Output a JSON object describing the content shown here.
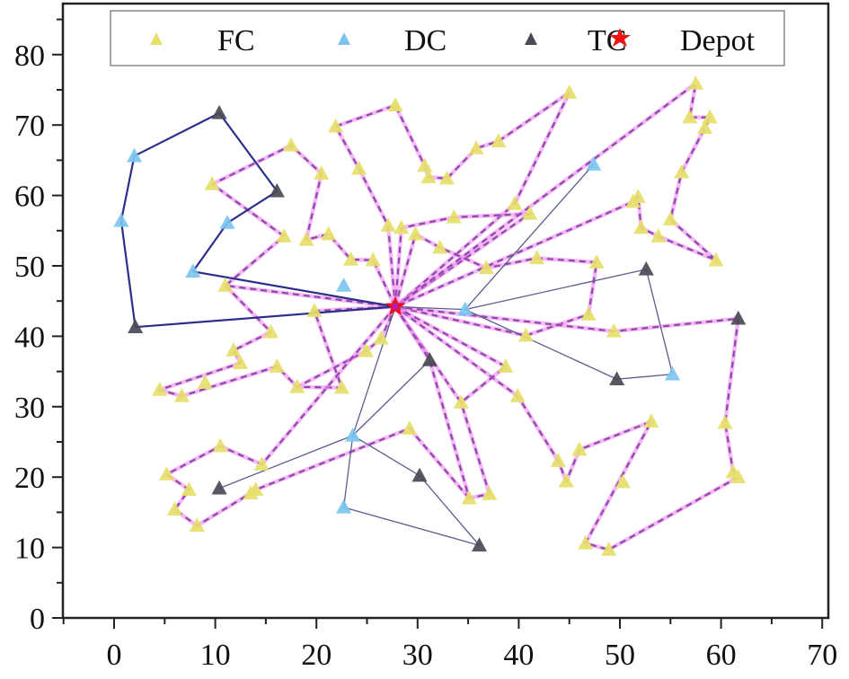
{
  "chart_data": {
    "type": "scatter",
    "title": "",
    "xlabel": "",
    "ylabel": "",
    "xlim": [
      -5,
      70
    ],
    "ylim": [
      0,
      87
    ],
    "x_ticks": [
      0,
      10,
      20,
      30,
      40,
      50,
      60,
      70
    ],
    "y_ticks": [
      0,
      10,
      20,
      30,
      40,
      50,
      60,
      70,
      80
    ],
    "grid": false,
    "legend_position": "top",
    "legend": [
      {
        "label": "FC",
        "marker": "triangle",
        "color": "#e6e06a"
      },
      {
        "label": "DC",
        "marker": "triangle",
        "color": "#7cc4f0"
      },
      {
        "label": "TC",
        "marker": "triangle",
        "color": "#4a4a55"
      },
      {
        "label": "Depot",
        "marker": "star",
        "color": "#ee1111"
      }
    ],
    "depot": {
      "x": 27.8,
      "y": 44.2
    },
    "series": [
      {
        "name": "FC",
        "color": "#e6e06a",
        "points": [
          [
            9.7,
            61.6
          ],
          [
            17.5,
            67.1
          ],
          [
            20.5,
            63.1
          ],
          [
            16.8,
            54.2
          ],
          [
            19.0,
            53.7
          ],
          [
            21.2,
            54.5
          ],
          [
            23.4,
            50.9
          ],
          [
            25.6,
            50.8
          ],
          [
            11.0,
            47.2
          ],
          [
            21.9,
            69.8
          ],
          [
            27.8,
            72.8
          ],
          [
            24.2,
            63.8
          ],
          [
            30.7,
            64.2
          ],
          [
            31.1,
            62.6
          ],
          [
            32.9,
            62.4
          ],
          [
            35.8,
            66.7
          ],
          [
            38.0,
            67.7
          ],
          [
            45.0,
            74.6
          ],
          [
            27.1,
            55.7
          ],
          [
            28.4,
            55.4
          ],
          [
            29.8,
            54.5
          ],
          [
            32.2,
            52.6
          ],
          [
            33.6,
            56.9
          ],
          [
            36.8,
            49.7
          ],
          [
            39.6,
            58.8
          ],
          [
            41.1,
            57.4
          ],
          [
            41.8,
            51.1
          ],
          [
            47.7,
            50.5
          ],
          [
            46.9,
            43.1
          ],
          [
            40.7,
            40.1
          ],
          [
            49.4,
            40.7
          ],
          [
            57.5,
            75.9
          ],
          [
            56.9,
            71.1
          ],
          [
            58.9,
            71.1
          ],
          [
            58.4,
            69.6
          ],
          [
            56.1,
            63.3
          ],
          [
            51.8,
            59.8
          ],
          [
            51.3,
            59.1
          ],
          [
            52.1,
            55.4
          ],
          [
            53.8,
            54.2
          ],
          [
            55.0,
            56.6
          ],
          [
            59.5,
            50.8
          ],
          [
            15.5,
            40.6
          ],
          [
            11.8,
            38.0
          ],
          [
            12.5,
            36.2
          ],
          [
            16.1,
            35.7
          ],
          [
            9.0,
            33.4
          ],
          [
            4.5,
            32.4
          ],
          [
            6.7,
            31.5
          ],
          [
            19.8,
            43.6
          ],
          [
            18.1,
            32.8
          ],
          [
            22.5,
            32.7
          ],
          [
            24.9,
            37.9
          ],
          [
            26.4,
            39.7
          ],
          [
            38.7,
            35.7
          ],
          [
            34.3,
            30.6
          ],
          [
            39.9,
            31.5
          ],
          [
            29.2,
            26.9
          ],
          [
            35.1,
            17.0
          ],
          [
            37.1,
            17.6
          ],
          [
            10.5,
            24.4
          ],
          [
            5.2,
            20.4
          ],
          [
            14.6,
            21.8
          ],
          [
            7.4,
            18.2
          ],
          [
            6.0,
            15.4
          ],
          [
            8.2,
            13.1
          ],
          [
            13.5,
            17.7
          ],
          [
            14.0,
            18.2
          ],
          [
            43.9,
            22.3
          ],
          [
            44.7,
            19.4
          ],
          [
            46.0,
            23.9
          ],
          [
            53.1,
            27.9
          ],
          [
            50.3,
            19.3
          ],
          [
            46.6,
            10.6
          ],
          [
            48.9,
            9.7
          ],
          [
            60.4,
            27.7
          ],
          [
            61.2,
            20.7
          ],
          [
            61.7,
            20.0
          ]
        ]
      },
      {
        "name": "DC",
        "color": "#7cc4f0",
        "points": [
          [
            2.0,
            65.6
          ],
          [
            0.7,
            56.4
          ],
          [
            11.2,
            56.1
          ],
          [
            7.8,
            49.2
          ],
          [
            22.7,
            47.2
          ],
          [
            34.7,
            43.8
          ],
          [
            47.4,
            64.4
          ],
          [
            55.2,
            34.6
          ],
          [
            23.6,
            25.9
          ],
          [
            22.7,
            15.7
          ]
        ]
      },
      {
        "name": "TC",
        "color": "#4a4a55",
        "points": [
          [
            10.4,
            71.7
          ],
          [
            16.1,
            60.6
          ],
          [
            2.1,
            41.3
          ],
          [
            52.6,
            49.5
          ],
          [
            61.7,
            42.5
          ],
          [
            49.7,
            33.9
          ],
          [
            31.2,
            36.6
          ],
          [
            10.4,
            18.4
          ],
          [
            30.2,
            20.2
          ],
          [
            36.1,
            10.3
          ]
        ]
      }
    ],
    "routes": {
      "truck_solid": [
        {
          "color": "#2b2f8a",
          "width": 2.2,
          "path": [
            [
              27.8,
              44.2
            ],
            [
              2.1,
              41.3
            ],
            [
              0.7,
              56.4
            ],
            [
              2.0,
              65.6
            ],
            [
              10.4,
              71.7
            ],
            [
              16.1,
              60.6
            ],
            [
              11.2,
              56.1
            ],
            [
              7.8,
              49.2
            ],
            [
              27.8,
              44.2
            ]
          ]
        }
      ],
      "truck_thin": [
        {
          "color": "#5a5f8a",
          "width": 1.3,
          "path": [
            [
              27.8,
              44.2
            ],
            [
              34.7,
              43.8
            ],
            [
              47.4,
              64.4
            ]
          ]
        },
        {
          "color": "#5a5f8a",
          "width": 1.3,
          "path": [
            [
              34.7,
              43.8
            ],
            [
              52.6,
              49.5
            ],
            [
              55.2,
              34.6
            ],
            [
              49.7,
              33.9
            ],
            [
              34.7,
              43.8
            ]
          ]
        },
        {
          "color": "#5a5f8a",
          "width": 1.3,
          "path": [
            [
              27.8,
              44.2
            ],
            [
              23.6,
              25.9
            ],
            [
              31.2,
              36.6
            ]
          ]
        },
        {
          "color": "#5a5f8a",
          "width": 1.3,
          "path": [
            [
              23.6,
              25.9
            ],
            [
              10.4,
              18.4
            ]
          ]
        },
        {
          "color": "#5a5f8a",
          "width": 1.3,
          "path": [
            [
              23.6,
              25.9
            ],
            [
              30.2,
              20.2
            ],
            [
              36.1,
              10.3
            ],
            [
              22.7,
              15.7
            ],
            [
              23.6,
              25.9
            ]
          ]
        }
      ],
      "drone_dashed": [
        {
          "path": [
            [
              27.8,
              44.2
            ],
            [
              11.0,
              47.2
            ],
            [
              16.8,
              54.2
            ],
            [
              9.7,
              61.6
            ],
            [
              17.5,
              67.1
            ],
            [
              20.5,
              63.1
            ],
            [
              19.0,
              53.7
            ],
            [
              21.2,
              54.5
            ],
            [
              23.4,
              50.9
            ],
            [
              25.6,
              50.8
            ],
            [
              27.8,
              44.2
            ]
          ]
        },
        {
          "path": [
            [
              27.8,
              44.2
            ],
            [
              27.1,
              55.7
            ],
            [
              24.2,
              63.8
            ],
            [
              21.9,
              69.8
            ],
            [
              27.8,
              72.8
            ],
            [
              30.7,
              64.2
            ],
            [
              31.1,
              62.6
            ],
            [
              32.9,
              62.4
            ],
            [
              35.8,
              66.7
            ],
            [
              38.0,
              67.7
            ],
            [
              45.0,
              74.6
            ],
            [
              39.6,
              58.8
            ],
            [
              27.8,
              44.2
            ]
          ]
        },
        {
          "path": [
            [
              27.8,
              44.2
            ],
            [
              28.4,
              55.4
            ],
            [
              33.6,
              56.9
            ],
            [
              41.1,
              57.4
            ],
            [
              27.8,
              44.2
            ]
          ]
        },
        {
          "path": [
            [
              27.8,
              44.2
            ],
            [
              29.8,
              54.5
            ],
            [
              32.2,
              52.6
            ],
            [
              36.8,
              49.7
            ],
            [
              41.8,
              51.1
            ],
            [
              47.7,
              50.5
            ],
            [
              46.9,
              43.1
            ],
            [
              40.7,
              40.1
            ],
            [
              27.8,
              44.2
            ]
          ]
        },
        {
          "path": [
            [
              27.8,
              44.2
            ],
            [
              57.5,
              75.9
            ],
            [
              56.9,
              71.1
            ],
            [
              58.9,
              71.1
            ],
            [
              58.4,
              69.6
            ],
            [
              56.1,
              63.3
            ],
            [
              55.0,
              56.6
            ],
            [
              59.5,
              50.8
            ],
            [
              53.8,
              54.2
            ],
            [
              52.1,
              55.4
            ],
            [
              51.8,
              59.8
            ],
            [
              51.3,
              59.1
            ],
            [
              27.8,
              44.2
            ]
          ]
        },
        {
          "path": [
            [
              27.8,
              44.2
            ],
            [
              49.4,
              40.7
            ],
            [
              61.7,
              42.5
            ],
            [
              60.4,
              27.7
            ],
            [
              61.2,
              20.7
            ],
            [
              61.7,
              20.0
            ],
            [
              48.9,
              9.7
            ],
            [
              46.6,
              10.6
            ],
            [
              53.1,
              27.9
            ],
            [
              46.0,
              23.9
            ],
            [
              44.7,
              19.4
            ],
            [
              43.9,
              22.3
            ],
            [
              39.9,
              31.5
            ],
            [
              27.8,
              44.2
            ]
          ]
        },
        {
          "path": [
            [
              27.8,
              44.2
            ],
            [
              38.7,
              35.7
            ],
            [
              34.3,
              30.6
            ],
            [
              27.8,
              44.2
            ]
          ]
        },
        {
          "path": [
            [
              27.8,
              44.2
            ],
            [
              31.2,
              36.6
            ],
            [
              35.1,
              17.0
            ],
            [
              37.1,
              17.6
            ],
            [
              34.3,
              30.6
            ]
          ]
        },
        {
          "path": [
            [
              27.8,
              44.2
            ],
            [
              19.8,
              43.6
            ],
            [
              22.5,
              32.7
            ],
            [
              18.1,
              32.8
            ],
            [
              24.9,
              37.9
            ],
            [
              26.4,
              39.7
            ],
            [
              27.8,
              44.2
            ]
          ]
        },
        {
          "path": [
            [
              11.0,
              47.2
            ],
            [
              15.5,
              40.6
            ],
            [
              11.8,
              38.0
            ],
            [
              12.5,
              36.2
            ],
            [
              4.5,
              32.4
            ],
            [
              6.7,
              31.5
            ],
            [
              16.1,
              35.7
            ],
            [
              18.1,
              32.8
            ]
          ]
        },
        {
          "path": [
            [
              27.8,
              44.2
            ],
            [
              14.6,
              21.8
            ],
            [
              10.5,
              24.4
            ],
            [
              5.2,
              20.4
            ],
            [
              7.4,
              18.2
            ],
            [
              6.0,
              15.4
            ],
            [
              8.2,
              13.1
            ],
            [
              13.5,
              17.7
            ],
            [
              14.0,
              18.2
            ],
            [
              29.2,
              26.9
            ],
            [
              35.1,
              17.0
            ]
          ]
        }
      ]
    }
  },
  "legend": {
    "fc_label": "FC",
    "dc_label": "DC",
    "tc_label": "TC",
    "depot_label": "Depot"
  },
  "axes": {
    "x_tick_labels": [
      "0",
      "10",
      "20",
      "30",
      "40",
      "50",
      "60",
      "70"
    ],
    "y_tick_labels": [
      "0",
      "10",
      "20",
      "30",
      "40",
      "50",
      "60",
      "70",
      "80"
    ]
  }
}
